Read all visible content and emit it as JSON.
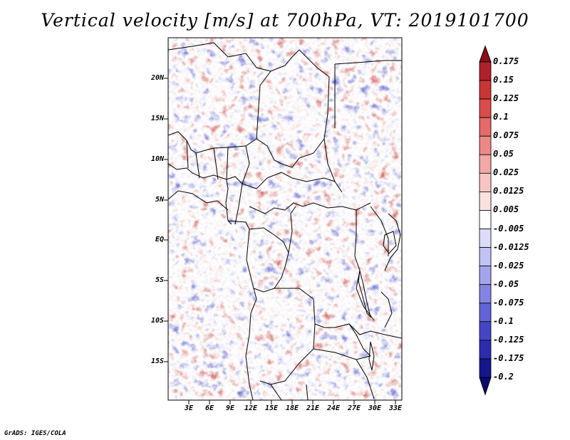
{
  "title": "Vertical velocity [m/s] at 700hPa, VT: 2019101700",
  "credit": "GrADS: IGES/COLA",
  "lat_labels": [
    "20N",
    "15N",
    "10N",
    "5N",
    "EQ",
    "5S",
    "10S",
    "15S"
  ],
  "lon_labels": [
    "3E",
    "6E",
    "9E",
    "12E",
    "15E",
    "18E",
    "21E",
    "24E",
    "27E",
    "30E",
    "33E"
  ],
  "colorbar": {
    "labels": [
      "0.175",
      "0.15",
      "0.125",
      "0.1",
      "0.075",
      "0.05",
      "0.025",
      "0.0125",
      "0.005",
      "-0.005",
      "-0.0125",
      "-0.025",
      "-0.05",
      "-0.075",
      "-0.1",
      "-0.125",
      "-0.175",
      "-0.2"
    ],
    "colors": [
      "#8b0f17",
      "#b0202a",
      "#cc3535",
      "#dc4b4b",
      "#e56a68",
      "#ec8886",
      "#f2a8a6",
      "#f7c6c4",
      "#fbe2e1",
      "#ffffff",
      "#dcdcfa",
      "#c2c2f5",
      "#a4a4ee",
      "#8484e4",
      "#6464d8",
      "#4545c8",
      "#2c2cb0",
      "#16168e",
      "#0a0a70"
    ]
  },
  "map": {
    "lon_range": [
      0,
      34
    ],
    "lat_range": [
      -20,
      25
    ]
  }
}
